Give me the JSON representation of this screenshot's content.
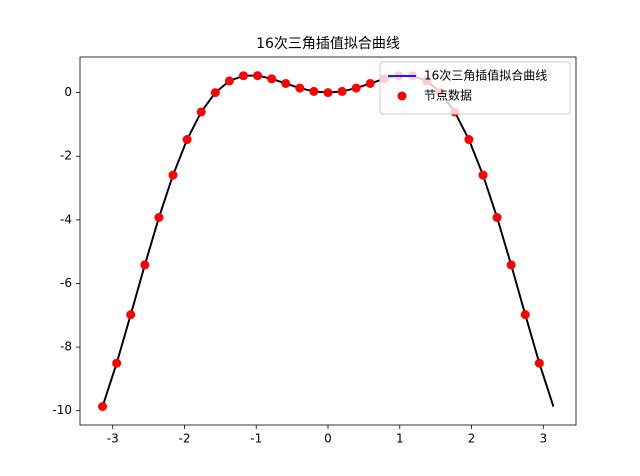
{
  "chart_data": {
    "type": "line",
    "title": "16次三角插值拟合曲线",
    "xlim": [
      -3.456,
      3.456
    ],
    "ylim": [
      -10.45,
      1.12
    ],
    "xticks": [
      -3,
      -2,
      -1,
      0,
      1,
      2,
      3
    ],
    "yticks": [
      -10,
      -8,
      -6,
      -4,
      -2,
      0
    ],
    "legend": "upper right",
    "series": [
      {
        "name": "16次三角插值拟合曲线",
        "type": "line",
        "color": "#0000ff",
        "x": [
          -3.1416,
          -2.9452,
          -2.7489,
          -2.5525,
          -2.3562,
          -2.1598,
          -1.9635,
          -1.7671,
          -1.5708,
          -1.3744,
          -1.1781,
          -0.9817,
          -0.7854,
          -0.589,
          -0.3927,
          -0.1963,
          0,
          0.1963,
          0.3927,
          0.589,
          0.7854,
          0.9817,
          1.1781,
          1.3744,
          1.5708,
          1.7671,
          1.9635,
          2.1598,
          2.3562,
          2.5525,
          2.7489,
          2.9452,
          3.1416
        ],
        "values": [
          -9.87,
          -8.508,
          -6.981,
          -5.417,
          -3.926,
          -2.592,
          -1.475,
          -0.609,
          0,
          0.369,
          0.531,
          0.535,
          0.436,
          0.288,
          0.142,
          0.038,
          0,
          0.038,
          0.142,
          0.288,
          0.436,
          0.535,
          0.531,
          0.369,
          0,
          -0.609,
          -1.475,
          -2.592,
          -3.926,
          -5.417,
          -6.981,
          -8.508,
          -9.87
        ]
      },
      {
        "type": "line",
        "color": "#000000",
        "x": [
          -3.1416,
          -2.9452,
          -2.7489,
          -2.5525,
          -2.3562,
          -2.1598,
          -1.9635,
          -1.7671,
          -1.5708,
          -1.3744,
          -1.1781,
          -0.9817,
          -0.7854,
          -0.589,
          -0.3927,
          -0.1963,
          0,
          0.1963,
          0.3927,
          0.589,
          0.7854,
          0.9817,
          1.1781,
          1.3744,
          1.5708,
          1.7671,
          1.9635,
          2.1598,
          2.3562,
          2.5525,
          2.7489,
          2.9452,
          3.1416
        ],
        "values": [
          -9.87,
          -8.508,
          -6.981,
          -5.417,
          -3.926,
          -2.592,
          -1.475,
          -0.609,
          0,
          0.369,
          0.531,
          0.535,
          0.436,
          0.288,
          0.142,
          0.038,
          0,
          0.038,
          0.142,
          0.288,
          0.436,
          0.535,
          0.531,
          0.369,
          0,
          -0.609,
          -1.475,
          -2.592,
          -3.926,
          -5.417,
          -6.981,
          -8.508,
          -9.87
        ]
      },
      {
        "name": "节点数据",
        "type": "scatter",
        "color": "#ff0000",
        "x": [
          -3.1416,
          -2.9452,
          -2.7489,
          -2.5525,
          -2.3562,
          -2.1598,
          -1.9635,
          -1.7671,
          -1.5708,
          -1.3744,
          -1.1781,
          -0.9817,
          -0.7854,
          -0.589,
          -0.3927,
          -0.1963,
          0,
          0.1963,
          0.3927,
          0.589,
          0.7854,
          0.9817,
          1.1781,
          1.3744,
          1.5708,
          1.7671,
          1.9635,
          2.1598,
          2.3562,
          2.5525,
          2.7489,
          2.9452
        ],
        "values": [
          -9.87,
          -8.508,
          -6.981,
          -5.417,
          -3.926,
          -2.592,
          -1.475,
          -0.609,
          0,
          0.369,
          0.531,
          0.535,
          0.436,
          0.288,
          0.142,
          0.038,
          0,
          0.038,
          0.142,
          0.288,
          0.436,
          0.535,
          0.531,
          0.369,
          0,
          -0.609,
          -1.475,
          -2.592,
          -3.926,
          -5.417,
          -6.981,
          -8.508
        ]
      }
    ]
  }
}
